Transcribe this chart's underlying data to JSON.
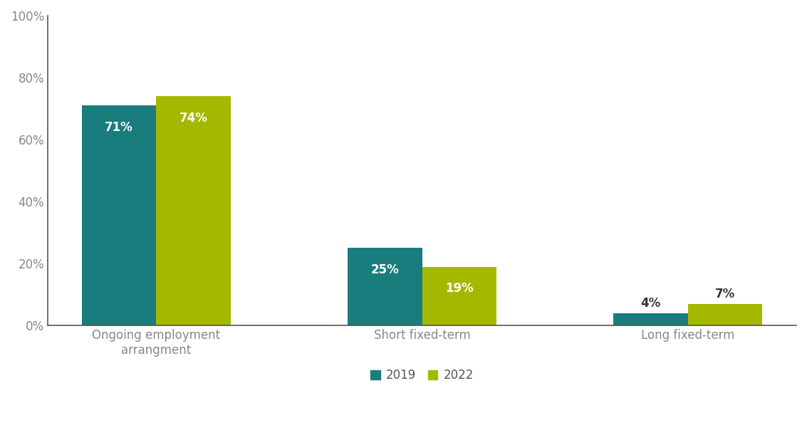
{
  "categories": [
    "Ongoing employment\narrangment",
    "Short fixed-term",
    "Long fixed-term"
  ],
  "values_2019": [
    71,
    25,
    4
  ],
  "values_2022": [
    74,
    19,
    7
  ],
  "labels_2019": [
    "71%",
    "25%",
    "4%"
  ],
  "labels_2022": [
    "74%",
    "19%",
    "7%"
  ],
  "color_2019": "#1a7d7d",
  "color_2022": "#a4b800",
  "bar_width": 0.28,
  "ylim": [
    0,
    100
  ],
  "yticks": [
    0,
    20,
    40,
    60,
    80,
    100
  ],
  "ytick_labels": [
    "0%",
    "20%",
    "40%",
    "60%",
    "80%",
    "100%"
  ],
  "legend_labels": [
    "2019",
    "2022"
  ],
  "background_color": "#ffffff",
  "label_fontsize": 12,
  "tick_fontsize": 12,
  "legend_fontsize": 12,
  "label_color_inside": "#ffffff",
  "label_color_outside": "#333333",
  "spine_color": "#555555"
}
